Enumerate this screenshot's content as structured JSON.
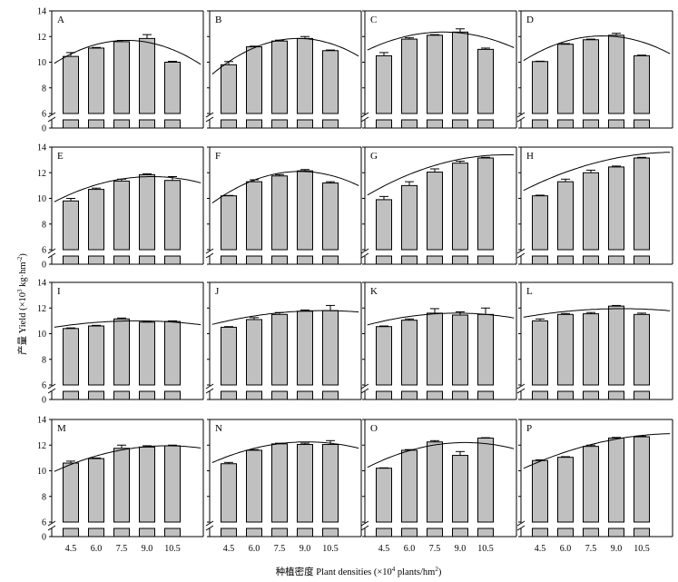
{
  "figure": {
    "ylabel_zh": "产量",
    "ylabel_en": "Yield (×10",
    "ylabel_sup1": "3",
    "ylabel_unit": " kg·hm",
    "ylabel_sup2": "-2",
    "ylabel_close": ")",
    "xlabel_zh": "种植密度",
    "xlabel_en": "Plant densities (×10",
    "xlabel_sup1": "4",
    "xlabel_unit": " plants/hm",
    "xlabel_sup2": "2",
    "xlabel_close": ")"
  },
  "chart_data": {
    "type": "bar",
    "categories": [
      "4.5",
      "6.0",
      "7.5",
      "9.0",
      "10.5"
    ],
    "y_ticks_upper": [
      "6",
      "8",
      "10",
      "12",
      "14"
    ],
    "y_ticks_lower": [
      "0"
    ],
    "ylim_upper": [
      6,
      14
    ],
    "ylim_lower": [
      0,
      1
    ],
    "axis_break": true,
    "grid": false,
    "bar_color": "#c0c0c0",
    "panels": [
      {
        "label": "A",
        "values": [
          10.45,
          11.1,
          11.6,
          11.85,
          10.0
        ],
        "errors": [
          0.3,
          0.05,
          0.1,
          0.3,
          0.07
        ],
        "fit_peak": [
          7.8,
          11.7
        ],
        "fit_k": 0.098
      },
      {
        "label": "B",
        "values": [
          9.8,
          11.2,
          11.65,
          11.85,
          10.9
        ],
        "errors": [
          0.25,
          0.05,
          0.07,
          0.15,
          0.05
        ],
        "fit_peak": [
          8.6,
          11.85
        ],
        "fit_k": 0.108
      },
      {
        "label": "C",
        "values": [
          10.5,
          11.8,
          12.1,
          12.35,
          11.0
        ],
        "errors": [
          0.25,
          0.1,
          0.05,
          0.25,
          0.1
        ],
        "fit_peak": [
          8.0,
          12.35
        ],
        "fit_k": 0.07
      },
      {
        "label": "D",
        "values": [
          10.05,
          11.4,
          11.75,
          12.1,
          10.5
        ],
        "errors": [
          0.03,
          0.05,
          0.05,
          0.15,
          0.05
        ],
        "fit_peak": [
          8.2,
          12.05
        ],
        "fit_k": 0.088
      },
      {
        "label": "E",
        "values": [
          9.8,
          10.7,
          11.35,
          11.85,
          11.4
        ],
        "errors": [
          0.2,
          0.1,
          0.15,
          0.07,
          0.3
        ],
        "fit_peak": [
          9.3,
          11.7
        ],
        "fit_k": 0.059
      },
      {
        "label": "F",
        "values": [
          10.2,
          11.3,
          11.75,
          12.15,
          11.2
        ],
        "errors": [
          0.03,
          0.15,
          0.1,
          0.1,
          0.1
        ],
        "fit_peak": [
          8.7,
          12.1
        ],
        "fit_k": 0.092
      },
      {
        "label": "G",
        "values": [
          9.9,
          11.0,
          12.05,
          12.75,
          13.15
        ],
        "errors": [
          0.25,
          0.3,
          0.25,
          0.15,
          0.05
        ],
        "fit_peak": [
          11.7,
          13.4
        ],
        "fit_k": 0.047
      },
      {
        "label": "H",
        "values": [
          10.2,
          11.3,
          12.0,
          12.45,
          13.15
        ],
        "errors": [
          0.05,
          0.2,
          0.2,
          0.07,
          0.05
        ],
        "fit_peak": [
          12.5,
          13.6
        ],
        "fit_k": 0.037
      },
      {
        "label": "I",
        "values": [
          10.4,
          10.6,
          11.15,
          10.9,
          10.95
        ],
        "errors": [
          0.05,
          0.05,
          0.07,
          0.05,
          0.05
        ],
        "fit_peak": [
          8.4,
          11.0
        ],
        "fit_k": 0.021
      },
      {
        "label": "J",
        "values": [
          10.5,
          11.1,
          11.5,
          11.75,
          11.8
        ],
        "errors": [
          0.05,
          0.15,
          0.15,
          0.1,
          0.4
        ],
        "fit_peak": [
          10.1,
          11.8
        ],
        "fit_k": 0.025
      },
      {
        "label": "K",
        "values": [
          10.55,
          11.05,
          11.6,
          11.45,
          11.5
        ],
        "errors": [
          0.05,
          0.1,
          0.35,
          0.25,
          0.5
        ],
        "fit_peak": [
          8.8,
          11.6
        ],
        "fit_k": 0.033
      },
      {
        "label": "L",
        "values": [
          11.0,
          11.5,
          11.55,
          12.15,
          11.5
        ],
        "errors": [
          0.15,
          0.07,
          0.1,
          0.05,
          0.1
        ],
        "fit_peak": [
          9.3,
          11.95
        ],
        "fit_k": 0.02
      },
      {
        "label": "M",
        "values": [
          10.6,
          10.95,
          11.75,
          11.85,
          11.95
        ],
        "errors": [
          0.15,
          0.05,
          0.25,
          0.1,
          0.05
        ],
        "fit_peak": [
          10.2,
          11.95
        ],
        "fit_k": 0.045
      },
      {
        "label": "N",
        "values": [
          10.55,
          11.6,
          12.1,
          12.05,
          12.05
        ],
        "errors": [
          0.1,
          0.05,
          0.05,
          0.1,
          0.3
        ],
        "fit_peak": [
          9.1,
          12.25
        ],
        "fit_k": 0.052
      },
      {
        "label": "O",
        "values": [
          10.2,
          11.6,
          12.25,
          11.2,
          12.55
        ],
        "errors": [
          0.03,
          0.05,
          0.1,
          0.3,
          0.03
        ],
        "fit_peak": [
          9.3,
          12.2
        ],
        "fit_k": 0.058
      },
      {
        "label": "P",
        "values": [
          10.8,
          11.05,
          11.9,
          12.55,
          12.65
        ],
        "errors": [
          0.05,
          0.05,
          0.1,
          0.05,
          0.05
        ],
        "fit_peak": [
          12.6,
          12.9
        ],
        "fit_k": 0.033
      }
    ]
  }
}
